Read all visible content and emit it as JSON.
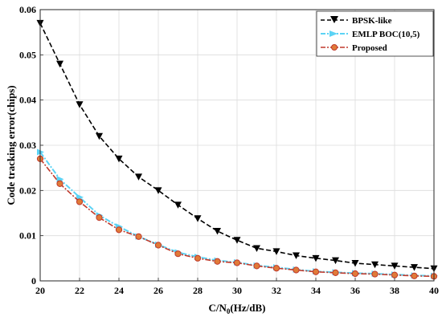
{
  "chart_data": {
    "type": "line",
    "x": [
      20,
      21,
      22,
      23,
      24,
      25,
      26,
      27,
      28,
      29,
      30,
      31,
      32,
      33,
      34,
      35,
      36,
      37,
      38,
      39,
      40
    ],
    "series": [
      {
        "name": "BPSK-like",
        "color": "#000000",
        "line": "dashed",
        "marker": "triangle-down",
        "values": [
          0.057,
          0.048,
          0.039,
          0.032,
          0.027,
          0.023,
          0.02,
          0.0168,
          0.0138,
          0.011,
          0.009,
          0.0072,
          0.0065,
          0.0056,
          0.005,
          0.0045,
          0.0039,
          0.0036,
          0.0033,
          0.003,
          0.0027
        ]
      },
      {
        "name": "EMLP BOC(10,5)",
        "color": "#5bd3f5",
        "line": "dash-dot",
        "marker": "right-arrow",
        "values": [
          0.0285,
          0.0225,
          0.0185,
          0.0145,
          0.012,
          0.0098,
          0.008,
          0.0063,
          0.0053,
          0.0045,
          0.0041,
          0.0034,
          0.003,
          0.0025,
          0.0021,
          0.0019,
          0.0017,
          0.0016,
          0.0014,
          0.0012,
          0.0011
        ]
      },
      {
        "name": "Proposed",
        "color": "#c0392b",
        "line": "dash-dot",
        "marker": "circle",
        "values": [
          0.027,
          0.0215,
          0.0175,
          0.014,
          0.0113,
          0.0098,
          0.0079,
          0.006,
          0.005,
          0.0043,
          0.004,
          0.0033,
          0.0028,
          0.0024,
          0.002,
          0.0018,
          0.0016,
          0.0015,
          0.0013,
          0.0011,
          0.001
        ]
      }
    ],
    "xlabel": "C/N",
    "xlabel_sub": "0",
    "xlabel_rest": "(Hz/dB)",
    "ylabel": "Code tracking error(chips)",
    "xlim": [
      20,
      40
    ],
    "ylim": [
      0,
      0.06
    ],
    "xticks": [
      20,
      22,
      24,
      26,
      28,
      30,
      32,
      34,
      36,
      38,
      40
    ],
    "yticks": [
      0,
      0.01,
      0.02,
      0.03,
      0.04,
      0.05,
      0.06
    ],
    "ytick_labels": [
      "0",
      "0.01",
      "0.02",
      "0.03",
      "0.04",
      "0.05",
      "0.06"
    ],
    "grid": true,
    "legend_position": "top-right"
  }
}
